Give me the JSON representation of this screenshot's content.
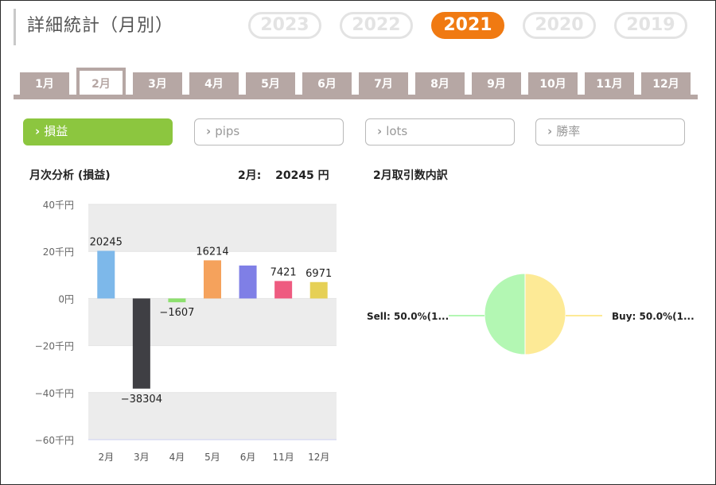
{
  "header": {
    "title": "詳細統計（月別）"
  },
  "years": [
    {
      "label": "2023",
      "active": false
    },
    {
      "label": "2022",
      "active": false
    },
    {
      "label": "2021",
      "active": true
    },
    {
      "label": "2020",
      "active": false
    },
    {
      "label": "2019",
      "active": false
    }
  ],
  "months": [
    {
      "label": "1月",
      "active": false
    },
    {
      "label": "2月",
      "active": true
    },
    {
      "label": "3月",
      "active": false
    },
    {
      "label": "4月",
      "active": false
    },
    {
      "label": "5月",
      "active": false
    },
    {
      "label": "6月",
      "active": false
    },
    {
      "label": "7月",
      "active": false
    },
    {
      "label": "8月",
      "active": false
    },
    {
      "label": "9月",
      "active": false
    },
    {
      "label": "10月",
      "active": false
    },
    {
      "label": "11月",
      "active": false
    },
    {
      "label": "12月",
      "active": false
    }
  ],
  "metrics": [
    {
      "label": "損益",
      "active": true
    },
    {
      "label": "pips",
      "active": false
    },
    {
      "label": "lots",
      "active": false
    },
    {
      "label": "勝率",
      "active": false
    }
  ],
  "chevron_icon": "chevron-right-icon",
  "colors": {
    "accent_year": "#f07a12",
    "accent_metric": "#8cc63f",
    "tab": "#b6a7a4"
  },
  "monthly": {
    "title": "月次分析 (損益)",
    "summary_month": "2月:",
    "summary_value": "20245 円"
  },
  "breakdown": {
    "title": "2月取引数内訳"
  },
  "chart_data": [
    {
      "type": "bar",
      "title": "月次分析 (損益)",
      "categories": [
        "2月",
        "3月",
        "4月",
        "5月",
        "6月",
        "11月",
        "12月"
      ],
      "values": [
        20245,
        -38304,
        -1607,
        16214,
        14000,
        7421,
        6971
      ],
      "data_labels": [
        "20245",
        "-38304",
        "-1607",
        "16214",
        "",
        "7421",
        "6971"
      ],
      "colors": [
        "#7db8ea",
        "#3f3f44",
        "#8de06e",
        "#f5a25c",
        "#7f7fe6",
        "#ee5b80",
        "#e6d055"
      ],
      "ylim": [
        -60000,
        40000
      ],
      "y_ticks": [
        {
          "value": 40000,
          "label": "40千円"
        },
        {
          "value": 20000,
          "label": "20千円"
        },
        {
          "value": 0,
          "label": "0円"
        },
        {
          "value": -20000,
          "label": "−20千円"
        },
        {
          "value": -40000,
          "label": "−40千円"
        },
        {
          "value": -60000,
          "label": "−60千円"
        }
      ],
      "bands": "alternating"
    },
    {
      "type": "pie",
      "title": "2月取引数内訳",
      "slices": [
        {
          "label": "Sell: 50.0%(1...",
          "value": 50.0,
          "color": "#b3f7b3"
        },
        {
          "label": "Buy: 50.0%(1...",
          "value": 50.0,
          "color": "#fdea96"
        }
      ]
    }
  ]
}
